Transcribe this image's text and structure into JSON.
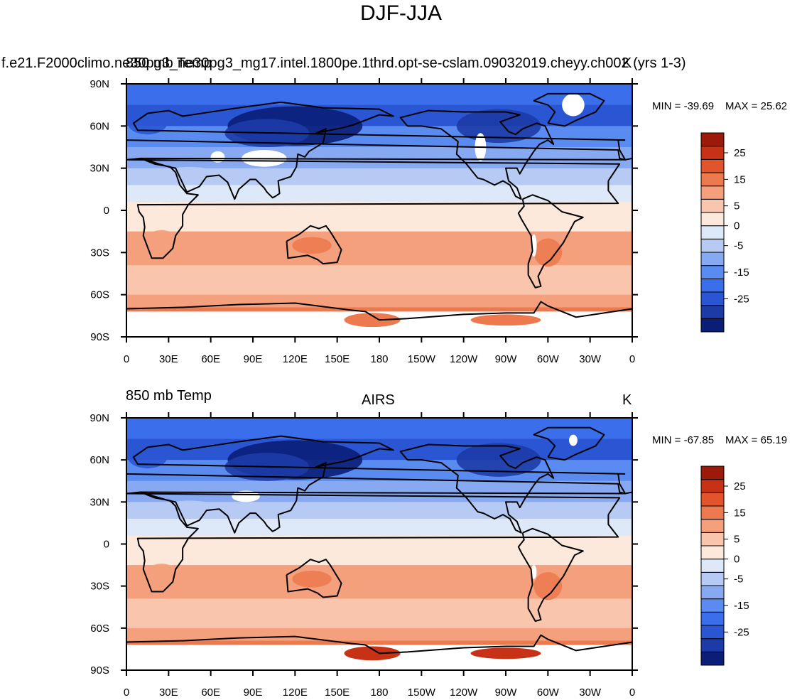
{
  "figure": {
    "title": "DJF-JJA",
    "colors": {
      "land_outline": "#000000",
      "missing": "#ffffff"
    }
  },
  "chart_data": [
    {
      "type": "heatmap",
      "subtype": "global-contour-map",
      "title": "f.e21.F2000climo.ne30pg3_ne30pg3_mg17.intel.1800pe.1thrd.opt-se-cslam.09032019.cheyy.ch002 (yrs 1-3)",
      "left_label": "850 mb Temp",
      "right_label": "K",
      "stats": {
        "min_label": "MIN = -39.69",
        "max_label": "MAX =  25.62",
        "min": -39.69,
        "max": 25.62
      },
      "xlabel": "",
      "ylabel": "",
      "x_ticks": [
        "0",
        "30E",
        "60E",
        "90E",
        "120E",
        "150E",
        "180",
        "150W",
        "120W",
        "90W",
        "60W",
        "30W",
        "0"
      ],
      "y_ticks": [
        "90N",
        "60N",
        "30N",
        "0",
        "30S",
        "60S",
        "90S"
      ],
      "colorbar": {
        "levels": [
          -30,
          -25,
          -20,
          -15,
          -10,
          -5,
          0,
          5,
          10,
          15,
          20,
          25,
          30
        ],
        "tick_labels": [
          "25",
          "15",
          "5",
          "0",
          "-5",
          "-15",
          "-25"
        ],
        "colors": [
          "#0a1e78",
          "#1d3ba7",
          "#2a56d4",
          "#3a6eea",
          "#5a8bf0",
          "#87a9f2",
          "#b6caf4",
          "#dde8f8",
          "#fde8dc",
          "#f9c5ad",
          "#f4a07c",
          "#ed7a4f",
          "#e2542c",
          "#c73216",
          "#9b1a0a"
        ]
      }
    },
    {
      "type": "heatmap",
      "subtype": "global-contour-map",
      "title": "AIRS",
      "left_label": "850 mb Temp",
      "right_label": "K",
      "stats": {
        "min_label": "MIN = -67.85",
        "max_label": "MAX =  65.19",
        "min": -67.85,
        "max": 65.19
      },
      "xlabel": "",
      "ylabel": "",
      "x_ticks": [
        "0",
        "30E",
        "60E",
        "90E",
        "120E",
        "150E",
        "180",
        "150W",
        "120W",
        "90W",
        "60W",
        "30W",
        "0"
      ],
      "y_ticks": [
        "90N",
        "60N",
        "30N",
        "0",
        "30S",
        "60S",
        "90S"
      ],
      "colorbar": {
        "levels": [
          -30,
          -25,
          -20,
          -15,
          -10,
          -5,
          0,
          5,
          10,
          15,
          20,
          25,
          30
        ],
        "tick_labels": [
          "25",
          "15",
          "5",
          "0",
          "-5",
          "-15",
          "-25"
        ],
        "colors": [
          "#0a1e78",
          "#1d3ba7",
          "#2a56d4",
          "#3a6eea",
          "#5a8bf0",
          "#87a9f2",
          "#b6caf4",
          "#dde8f8",
          "#fde8dc",
          "#f9c5ad",
          "#f4a07c",
          "#ed7a4f",
          "#e2542c",
          "#c73216",
          "#9b1a0a"
        ]
      }
    }
  ]
}
